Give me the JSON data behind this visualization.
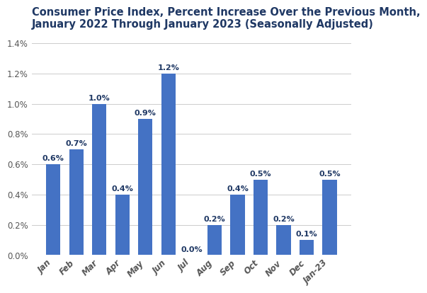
{
  "title_line1": "Consumer Price Index, Percent Increase Over the Previous Month,",
  "title_line2": "January 2022 Through January 2023 (Seasonally Adjusted)",
  "categories": [
    "Jan",
    "Feb",
    "Mar",
    "Apr",
    "May",
    "Jun",
    "Jul",
    "Aug",
    "Sep",
    "Oct",
    "Nov",
    "Dec",
    "Jan-23"
  ],
  "values": [
    0.6,
    0.7,
    1.0,
    0.4,
    0.9,
    1.2,
    0.0,
    0.2,
    0.4,
    0.5,
    0.2,
    0.1,
    0.5
  ],
  "bar_color": "#4472C4",
  "title_color": "#1F3864",
  "label_color": "#1F3864",
  "axis_tick_color": "#555555",
  "ylim": [
    0,
    1.45
  ],
  "yticks": [
    0.0,
    0.2,
    0.4,
    0.6,
    0.8,
    1.0,
    1.2,
    1.4
  ],
  "background_color": "#ffffff",
  "grid_color": "#cccccc",
  "title_fontsize": 10.5,
  "bar_label_fontsize": 8.0,
  "tick_fontsize": 8.5
}
